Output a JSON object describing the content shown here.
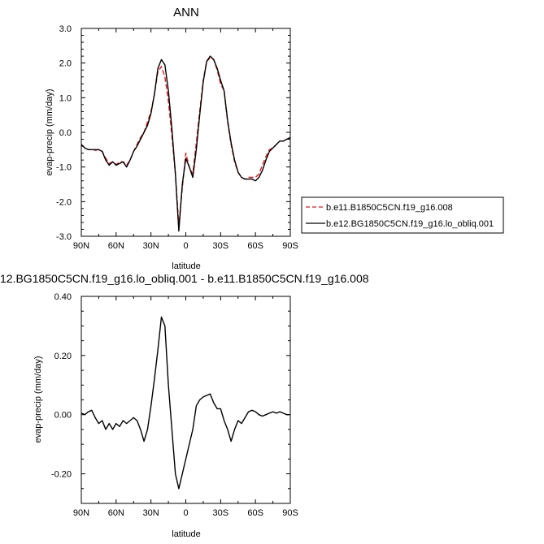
{
  "chart_data": [
    {
      "type": "line",
      "title": "ANN",
      "xlabel": "latitude",
      "ylabel": "evap-precip (mm/day)",
      "xlim": [
        -90,
        90
      ],
      "ylim": [
        -3.0,
        3.0
      ],
      "x_ticks": [
        -90,
        -60,
        -30,
        0,
        30,
        60,
        90
      ],
      "x_tick_labels": [
        "90N",
        "60N",
        "30N",
        "0",
        "30S",
        "60S",
        "90S"
      ],
      "y_ticks": [
        -3.0,
        -2.0,
        -1.0,
        0.0,
        1.0,
        2.0,
        3.0
      ],
      "y_tick_labels": [
        "-3.0",
        "-2.0",
        "-1.0",
        "0.0",
        "1.0",
        "2.0",
        "3.0"
      ],
      "grid": false,
      "legend_position": "right",
      "series": [
        {
          "name": "b.e11.B1850C5CN.f19_g16.008",
          "color": "#e8151b",
          "dash": "dashed",
          "x": [
            -90,
            -87,
            -84,
            -81,
            -78,
            -75,
            -72,
            -69,
            -66,
            -63,
            -60,
            -57,
            -54,
            -51,
            -48,
            -45,
            -42,
            -39,
            -36,
            -33,
            -30,
            -27,
            -24,
            -21,
            -18,
            -15,
            -12,
            -9,
            -6,
            -3,
            0,
            3,
            6,
            9,
            12,
            15,
            18,
            21,
            24,
            27,
            30,
            33,
            36,
            39,
            42,
            45,
            48,
            51,
            54,
            57,
            60,
            63,
            66,
            69,
            72,
            75,
            78,
            81,
            84,
            87,
            90
          ],
          "values": [
            -0.35,
            -0.45,
            -0.5,
            -0.5,
            -0.52,
            -0.5,
            -0.55,
            -0.75,
            -0.9,
            -0.85,
            -0.93,
            -0.85,
            -0.85,
            -0.95,
            -0.8,
            -0.55,
            -0.35,
            -0.15,
            0.0,
            0.3,
            0.6,
            1.1,
            1.75,
            1.9,
            1.6,
            0.9,
            -0.1,
            -1.2,
            -2.7,
            -1.6,
            -0.6,
            -1.0,
            -1.2,
            -0.3,
            0.6,
            1.5,
            2.05,
            2.15,
            2.1,
            1.8,
            1.4,
            1.2,
            0.3,
            -0.35,
            -0.85,
            -1.15,
            -1.3,
            -1.35,
            -1.3,
            -1.3,
            -1.3,
            -1.2,
            -0.95,
            -0.7,
            -0.5,
            -0.45,
            -0.35,
            -0.25,
            -0.25,
            -0.2,
            -0.15
          ]
        },
        {
          "name": "b.e12.BG1850C5CN.f19_g16.lo_obliq.001",
          "color": "#000000",
          "dash": "solid",
          "x": [
            -90,
            -87,
            -84,
            -81,
            -78,
            -75,
            -72,
            -69,
            -66,
            -63,
            -60,
            -57,
            -54,
            -51,
            -48,
            -45,
            -42,
            -39,
            -36,
            -33,
            -30,
            -27,
            -24,
            -21,
            -18,
            -15,
            -12,
            -9,
            -6,
            -3,
            0,
            3,
            6,
            9,
            12,
            15,
            18,
            21,
            24,
            27,
            30,
            33,
            36,
            39,
            42,
            45,
            48,
            51,
            54,
            57,
            60,
            63,
            66,
            69,
            72,
            75,
            78,
            81,
            84,
            87,
            90
          ],
          "values": [
            -0.35,
            -0.45,
            -0.5,
            -0.5,
            -0.5,
            -0.5,
            -0.55,
            -0.8,
            -0.95,
            -0.85,
            -0.95,
            -0.9,
            -0.85,
            -1.0,
            -0.8,
            -0.55,
            -0.4,
            -0.2,
            0.0,
            0.2,
            0.55,
            1.1,
            1.85,
            2.1,
            1.95,
            1.2,
            0.1,
            -1.2,
            -2.85,
            -1.5,
            -0.75,
            -1.0,
            -1.3,
            -0.5,
            0.5,
            1.45,
            2.05,
            2.2,
            2.1,
            1.85,
            1.5,
            1.2,
            0.35,
            -0.3,
            -0.8,
            -1.15,
            -1.3,
            -1.35,
            -1.35,
            -1.35,
            -1.4,
            -1.3,
            -1.1,
            -0.8,
            -0.55,
            -0.45,
            -0.35,
            -0.25,
            -0.25,
            -0.2,
            -0.15
          ]
        }
      ]
    },
    {
      "type": "line",
      "title": "12.BG1850C5CN.f19_g16.lo_obliq.001 - b.e11.B1850C5CN.f19_g16.008",
      "xlabel": "latitude",
      "ylabel": "evap-precip (mm/day)",
      "xlim": [
        -90,
        90
      ],
      "ylim": [
        -0.3,
        0.4
      ],
      "x_ticks": [
        -90,
        -60,
        -30,
        0,
        30,
        60,
        90
      ],
      "x_tick_labels": [
        "90N",
        "60N",
        "30N",
        "0",
        "30S",
        "60S",
        "90S"
      ],
      "y_ticks": [
        -0.2,
        0.0,
        0.2,
        0.4
      ],
      "y_tick_labels": [
        "-0.20",
        "0.00",
        "0.20",
        "0.40"
      ],
      "grid": false,
      "series": [
        {
          "color": "#000000",
          "dash": "solid",
          "x": [
            -90,
            -87,
            -84,
            -81,
            -78,
            -75,
            -72,
            -69,
            -66,
            -63,
            -60,
            -57,
            -54,
            -51,
            -48,
            -45,
            -42,
            -39,
            -36,
            -33,
            -30,
            -27,
            -24,
            -21,
            -18,
            -15,
            -12,
            -9,
            -6,
            -3,
            0,
            3,
            6,
            9,
            12,
            15,
            18,
            21,
            24,
            27,
            30,
            33,
            36,
            39,
            42,
            45,
            48,
            51,
            54,
            57,
            60,
            63,
            66,
            69,
            72,
            75,
            78,
            81,
            84,
            87,
            90
          ],
          "values": [
            0.005,
            0.0,
            0.01,
            0.015,
            -0.01,
            -0.03,
            -0.02,
            -0.05,
            -0.03,
            -0.05,
            -0.03,
            -0.04,
            -0.02,
            -0.03,
            -0.02,
            -0.01,
            -0.02,
            -0.05,
            -0.09,
            -0.05,
            0.03,
            0.12,
            0.22,
            0.33,
            0.3,
            0.1,
            -0.05,
            -0.2,
            -0.25,
            -0.2,
            -0.15,
            -0.1,
            -0.05,
            0.03,
            0.05,
            0.06,
            0.065,
            0.07,
            0.04,
            0.02,
            0.02,
            -0.02,
            -0.05,
            -0.09,
            -0.05,
            -0.02,
            -0.03,
            -0.01,
            0.01,
            0.015,
            0.01,
            0.0,
            -0.005,
            0.0,
            0.005,
            0.01,
            0.005,
            0.01,
            0.005,
            0.0,
            0.0
          ]
        }
      ]
    }
  ]
}
